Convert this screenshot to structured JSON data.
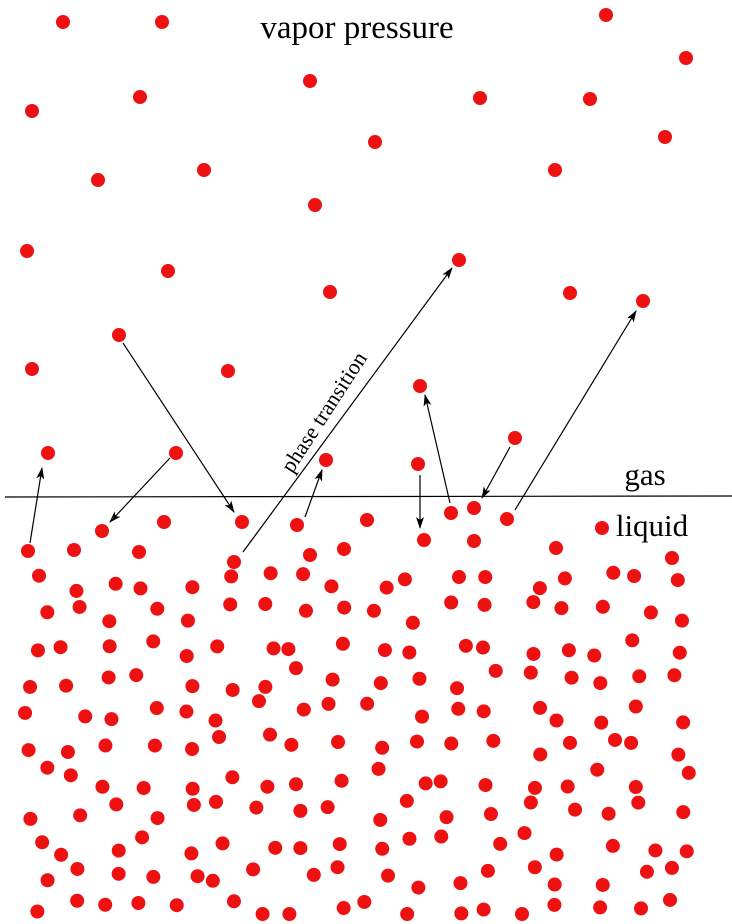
{
  "title": "vapor pressure",
  "arrow_label": "phase transition",
  "regions": {
    "gas": "gas",
    "liquid": "liquid"
  }
}
